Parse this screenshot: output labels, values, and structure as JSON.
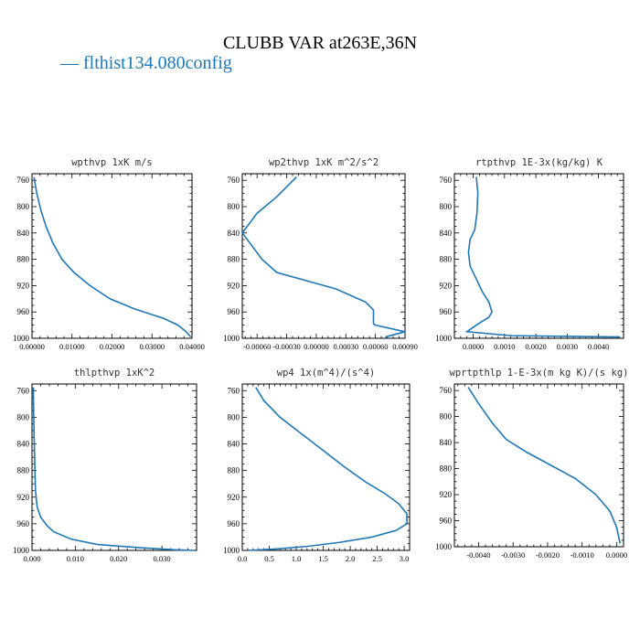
{
  "title": "CLUBB VAR at263E,36N",
  "legend": {
    "label": "— flthist134.080config",
    "color": "#1f77b4"
  },
  "chart_data": [
    {
      "type": "line",
      "title": "wpthvp 1xK m/s",
      "xlim": [
        0,
        0.04
      ],
      "ylim": [
        1000,
        750
      ],
      "xticks": [
        0,
        0.01,
        0.02,
        0.03,
        0.04
      ],
      "xticklabels": [
        "0.00000",
        "0.01000",
        "0.02000",
        "0.03000",
        "0.04000"
      ],
      "yticks": [
        760,
        800,
        840,
        880,
        920,
        960,
        1000
      ],
      "series": [
        {
          "x": [
            0.0005,
            0.0012,
            0.0022,
            0.0035,
            0.0052,
            0.0075,
            0.0105,
            0.0145,
            0.0195,
            0.0255,
            0.033,
            0.0365,
            0.0385,
            0.0397
          ],
          "y": [
            755,
            780,
            805,
            830,
            855,
            880,
            900,
            920,
            940,
            955,
            970,
            980,
            990,
            998
          ]
        }
      ]
    },
    {
      "type": "line",
      "title": "wp2thvp 1xK m^2/s^2",
      "xlim": [
        -0.00075,
        0.0009
      ],
      "ylim": [
        1000,
        750
      ],
      "xticks": [
        -0.0006,
        -0.0003,
        0,
        0.0003,
        0.0006,
        0.0009
      ],
      "xticklabels": [
        "-0.00060",
        "-0.00030",
        "0.00000",
        "0.00030",
        "0.00060",
        "0.00090"
      ],
      "yticks": [
        760,
        800,
        840,
        880,
        920,
        960,
        1000
      ],
      "series": [
        {
          "x": [
            -0.0002,
            -0.0004,
            -0.0006,
            -0.00075,
            -0.00065,
            -0.00055,
            -0.0004,
            0.0002,
            0.0005,
            0.00058,
            0.00058,
            0.0006,
            0.0009,
            0.0007
          ],
          "y": [
            755,
            785,
            810,
            840,
            860,
            880,
            900,
            925,
            945,
            957,
            978,
            980,
            990,
            998
          ]
        }
      ]
    },
    {
      "type": "line",
      "title": "rtpthvp 1E-3x(kg/kg) K",
      "xlim": [
        -0.0006,
        0.0048
      ],
      "ylim": [
        1000,
        750
      ],
      "xticks": [
        0,
        0.001,
        0.002,
        0.003,
        0.004
      ],
      "xticklabels": [
        "0.0000",
        "0.0010",
        "0.0020",
        "0.0030",
        "0.0040"
      ],
      "yticks": [
        760,
        800,
        840,
        880,
        920,
        960,
        1000
      ],
      "series": [
        {
          "x": [
            0.0001,
            0.00015,
            0.00012,
            5e-05,
            -0.0001,
            -0.00015,
            -0.0001,
            0.0001,
            0.0003,
            0.0005,
            0.0006,
            0.0005,
            0.0001,
            -0.0002,
            0.0012,
            0.0047
          ],
          "y": [
            755,
            780,
            810,
            835,
            850,
            870,
            890,
            910,
            930,
            945,
            960,
            968,
            980,
            990,
            996,
            998
          ]
        }
      ]
    },
    {
      "type": "line",
      "title": "thlpthvp 1xK^2",
      "xlim": [
        0,
        0.038
      ],
      "ylim": [
        1000,
        750
      ],
      "xticks": [
        0,
        0.01,
        0.02,
        0.03
      ],
      "xticklabels": [
        "0.000",
        "0.010",
        "0.020",
        "0.030"
      ],
      "yticks": [
        760,
        800,
        840,
        880,
        920,
        960,
        1000
      ],
      "series": [
        {
          "x": [
            0.0003,
            0.0004,
            0.0006,
            0.0008,
            0.0012,
            0.002,
            0.0035,
            0.005,
            0.009,
            0.015,
            0.025,
            0.033,
            0.0375
          ],
          "y": [
            755,
            800,
            860,
            910,
            935,
            950,
            963,
            972,
            983,
            991,
            996,
            999,
            1000
          ]
        }
      ]
    },
    {
      "type": "line",
      "title": "wp4 1x(m^4)/(s^4)",
      "xlim": [
        0,
        3.1
      ],
      "ylim": [
        1000,
        750
      ],
      "xticks": [
        0,
        0.5,
        1.0,
        1.5,
        2.0,
        2.5,
        3.0
      ],
      "xticklabels": [
        "0.0",
        "0.5",
        "1.0",
        "1.5",
        "2.0",
        "2.5",
        "3.0"
      ],
      "yticks": [
        760,
        800,
        840,
        880,
        920,
        960,
        1000
      ],
      "series": [
        {
          "x": [
            0.25,
            0.4,
            0.7,
            1.1,
            1.5,
            1.9,
            2.3,
            2.65,
            2.9,
            3.05,
            3.05,
            2.85,
            2.4,
            1.8,
            1.2,
            0.6,
            0.1
          ],
          "y": [
            755,
            775,
            800,
            825,
            850,
            875,
            898,
            915,
            930,
            945,
            960,
            970,
            980,
            988,
            994,
            998,
            1000
          ]
        }
      ]
    },
    {
      "type": "line",
      "title": "wprtpthlp 1-E-3x(m kg K)/(s kg)",
      "xlim": [
        -0.0047,
        0.0002
      ],
      "ylim": [
        1000,
        750
      ],
      "xticks": [
        -0.004,
        -0.003,
        -0.002,
        -0.001,
        0
      ],
      "xticklabels": [
        "-0.0040",
        "-0.0030",
        "-0.0020",
        "-0.0010",
        "0.0000"
      ],
      "yticks": [
        760,
        800,
        840,
        880,
        920,
        960,
        1000
      ],
      "series": [
        {
          "x": [
            -0.0043,
            -0.004,
            -0.0036,
            -0.0032,
            -0.0026,
            -0.0019,
            -0.0012,
            -0.0006,
            -0.0002,
            0.0,
            0.0001
          ],
          "y": [
            755,
            780,
            810,
            835,
            855,
            875,
            895,
            920,
            945,
            970,
            995
          ]
        }
      ]
    }
  ]
}
